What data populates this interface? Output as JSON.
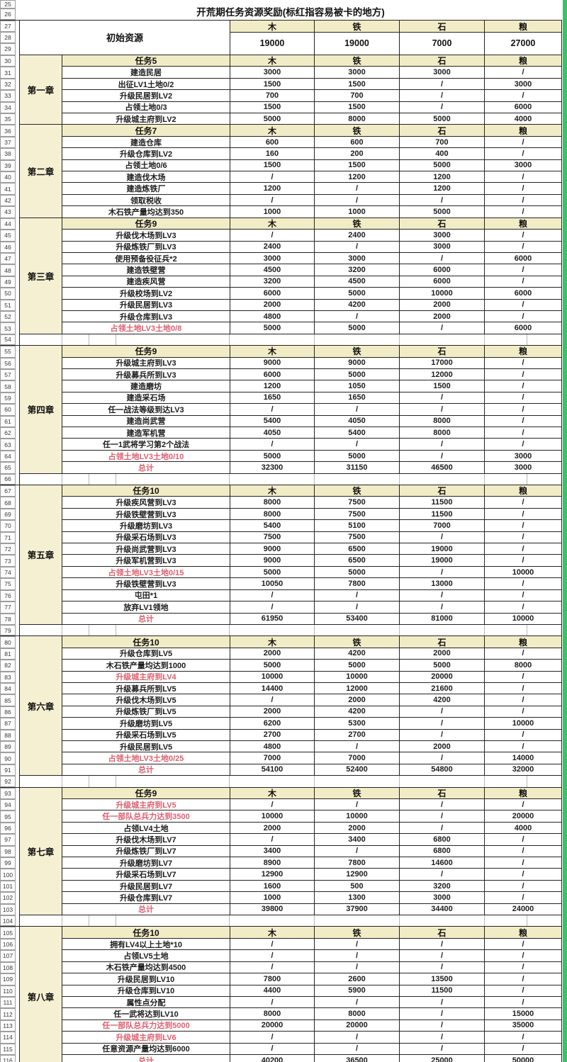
{
  "title": "开荒期任务资源奖励(标红指容易被卡的地方)",
  "columns": [
    "木",
    "铁",
    "石",
    "粮"
  ],
  "title_row_nums": [
    "25",
    "26"
  ],
  "initial_resources": {
    "label": "初始资源",
    "row_nums": [
      "27",
      "28",
      "29"
    ],
    "values": [
      "19000",
      "19000",
      "7000",
      "27000"
    ]
  },
  "colors": {
    "header_bg": "#f2ecc6",
    "chapter_bg": "#f6f0d3",
    "red_text": "#dd5f6e",
    "grid_border": "#242424",
    "green_strip": "#3ec06a"
  },
  "chapters": [
    {
      "name": "第一章",
      "task_header": "任务5",
      "header_row_num": "30",
      "spacer_row_after": null,
      "rows": [
        {
          "num": "31",
          "task": "建造民居",
          "values": [
            "3000",
            "3000",
            "3000",
            "/"
          ],
          "red": false
        },
        {
          "num": "32",
          "task": "出征LV1土地0/2",
          "values": [
            "1500",
            "1500",
            "/",
            "3000"
          ],
          "red": false
        },
        {
          "num": "33",
          "task": "升级民居到LV2",
          "values": [
            "700",
            "700",
            "/",
            "/"
          ],
          "red": false
        },
        {
          "num": "34",
          "task": "占领土地0/3",
          "values": [
            "1500",
            "1500",
            "/",
            "6000"
          ],
          "red": false
        },
        {
          "num": "35",
          "task": "升级城主府到LV2",
          "values": [
            "5000",
            "8000",
            "5000",
            "4000"
          ],
          "red": false
        }
      ]
    },
    {
      "name": "第二章",
      "task_header": "任务7",
      "header_row_num": "36",
      "spacer_row_after": null,
      "rows": [
        {
          "num": "37",
          "task": "建造仓库",
          "values": [
            "600",
            "600",
            "700",
            "/"
          ],
          "red": false
        },
        {
          "num": "38",
          "task": "升级仓库到LV2",
          "values": [
            "160",
            "200",
            "400",
            "/"
          ],
          "red": false
        },
        {
          "num": "39",
          "task": "占领土地0/6",
          "values": [
            "1500",
            "1500",
            "5000",
            "3000"
          ],
          "red": false
        },
        {
          "num": "40",
          "task": "建造伐木场",
          "values": [
            "/",
            "1200",
            "1200",
            "/"
          ],
          "red": false
        },
        {
          "num": "41",
          "task": "建造炼铁厂",
          "values": [
            "1200",
            "/",
            "1200",
            "/"
          ],
          "red": false
        },
        {
          "num": "42",
          "task": "领取税收",
          "values": [
            "/",
            "/",
            "/",
            "/"
          ],
          "red": false
        },
        {
          "num": "43",
          "task": "木石铁产量均达到350",
          "values": [
            "1000",
            "1000",
            "5000",
            "/"
          ],
          "red": false
        }
      ]
    },
    {
      "name": "第三章",
      "task_header": "任务9",
      "header_row_num": "44",
      "spacer_row_after": "54",
      "rows": [
        {
          "num": "45",
          "task": "升级伐木场到LV3",
          "values": [
            "/",
            "2400",
            "3000",
            "/"
          ],
          "red": false
        },
        {
          "num": "46",
          "task": "升级炼铁厂到LV3",
          "values": [
            "2400",
            "/",
            "3000",
            "/"
          ],
          "red": false
        },
        {
          "num": "47",
          "task": "使用预备役征兵*2",
          "values": [
            "3000",
            "3000",
            "/",
            "6000"
          ],
          "red": false
        },
        {
          "num": "48",
          "task": "建造铁壁营",
          "values": [
            "4500",
            "3200",
            "6000",
            "/"
          ],
          "red": false
        },
        {
          "num": "49",
          "task": "建造疾风营",
          "values": [
            "3200",
            "4500",
            "6000",
            "/"
          ],
          "red": false
        },
        {
          "num": "50",
          "task": "升级校场到LV2",
          "values": [
            "6000",
            "5000",
            "10000",
            "6000"
          ],
          "red": false
        },
        {
          "num": "51",
          "task": "升级民居到LV3",
          "values": [
            "2000",
            "4200",
            "2000",
            "/"
          ],
          "red": false
        },
        {
          "num": "52",
          "task": "升级仓库到LV3",
          "values": [
            "4800",
            "/",
            "2000",
            "/"
          ],
          "red": false
        },
        {
          "num": "53",
          "task": "占领土地LV3土地0/8",
          "values": [
            "5000",
            "5000",
            "/",
            "6000"
          ],
          "red": true
        }
      ]
    },
    {
      "name": "第四章",
      "task_header": "任务9",
      "header_row_num": "55",
      "spacer_row_after": "66",
      "rows": [
        {
          "num": "56",
          "task": "升级城主府到LV3",
          "values": [
            "9000",
            "9000",
            "17000",
            "/"
          ],
          "red": false
        },
        {
          "num": "57",
          "task": "升级募兵所到LV3",
          "values": [
            "6000",
            "5000",
            "12000",
            "/"
          ],
          "red": false
        },
        {
          "num": "58",
          "task": "建造磨坊",
          "values": [
            "1200",
            "1050",
            "1500",
            "/"
          ],
          "red": false
        },
        {
          "num": "59",
          "task": "建造采石场",
          "values": [
            "1650",
            "1650",
            "/",
            "/"
          ],
          "red": false
        },
        {
          "num": "60",
          "task": "任一战法等级到达LV3",
          "values": [
            "/",
            "/",
            "/",
            "/"
          ],
          "red": false
        },
        {
          "num": "61",
          "task": "建造尚武营",
          "values": [
            "5400",
            "4050",
            "8000",
            "/"
          ],
          "red": false
        },
        {
          "num": "62",
          "task": "建造军机营",
          "values": [
            "4050",
            "5400",
            "8000",
            "/"
          ],
          "red": false
        },
        {
          "num": "63",
          "task": "任一1武将学习第2个战法",
          "values": [
            "/",
            "/",
            "/",
            "/"
          ],
          "red": false
        },
        {
          "num": "64",
          "task": "占领土地LV3土地0/10",
          "values": [
            "5000",
            "5000",
            "/",
            "3000"
          ],
          "red": true
        },
        {
          "num": "65",
          "task": "总计",
          "values": [
            "32300",
            "31150",
            "46500",
            "3000"
          ],
          "red": true
        }
      ]
    },
    {
      "name": "第五章",
      "task_header": "任务10",
      "header_row_num": "67",
      "spacer_row_after": "79",
      "rows": [
        {
          "num": "68",
          "task": "升级疾风营到LV3",
          "values": [
            "8000",
            "7500",
            "11500",
            "/"
          ],
          "red": false
        },
        {
          "num": "69",
          "task": "升级铁壁营到LV3",
          "values": [
            "8000",
            "7500",
            "11500",
            "/"
          ],
          "red": false
        },
        {
          "num": "70",
          "task": "升级磨坊到LV3",
          "values": [
            "5400",
            "5100",
            "7000",
            "/"
          ],
          "red": false
        },
        {
          "num": "71",
          "task": "升级采石场到LV3",
          "values": [
            "7500",
            "7500",
            "/",
            "/"
          ],
          "red": false
        },
        {
          "num": "72",
          "task": "升级尚武营到LV3",
          "values": [
            "9000",
            "6500",
            "19000",
            "/"
          ],
          "red": false
        },
        {
          "num": "73",
          "task": "升级军机营到LV3",
          "values": [
            "9000",
            "6500",
            "19000",
            "/"
          ],
          "red": false
        },
        {
          "num": "74",
          "task": "占领土地LV3土地0/15",
          "values": [
            "5000",
            "5000",
            "/",
            "10000"
          ],
          "red": true
        },
        {
          "num": "75",
          "task": "升级铁壁营到LV3",
          "values": [
            "10050",
            "7800",
            "13000",
            "/"
          ],
          "red": false
        },
        {
          "num": "76",
          "task": "屯田*1",
          "values": [
            "/",
            "/",
            "/",
            "/"
          ],
          "red": false
        },
        {
          "num": "77",
          "task": "放弃LV1领地",
          "values": [
            "/",
            "/",
            "/",
            "/"
          ],
          "red": false
        },
        {
          "num": "78",
          "task": "总计",
          "values": [
            "61950",
            "53400",
            "81000",
            "10000"
          ],
          "red": true
        }
      ]
    },
    {
      "name": "第六章",
      "task_header": "任务10",
      "header_row_num": "80",
      "spacer_row_after": "92",
      "rows": [
        {
          "num": "81",
          "task": "升级仓库到LV5",
          "values": [
            "2000",
            "4200",
            "2000",
            "/"
          ],
          "red": false
        },
        {
          "num": "82",
          "task": "木石铁产量均达到1000",
          "values": [
            "5000",
            "5000",
            "5000",
            "8000"
          ],
          "red": false
        },
        {
          "num": "83",
          "task": "升级城主府到LV4",
          "values": [
            "10000",
            "10000",
            "20000",
            "/"
          ],
          "red": true
        },
        {
          "num": "84",
          "task": "升级募兵所到LV5",
          "values": [
            "14400",
            "12000",
            "21600",
            "/"
          ],
          "red": false
        },
        {
          "num": "85",
          "task": "升级伐木场到LV5",
          "values": [
            "/",
            "2000",
            "4200",
            "/"
          ],
          "red": false
        },
        {
          "num": "86",
          "task": "升级炼铁厂到LV5",
          "values": [
            "2000",
            "4200",
            "/",
            "/"
          ],
          "red": false
        },
        {
          "num": "87",
          "task": "升级磨坊到LV5",
          "values": [
            "6200",
            "5300",
            "/",
            "10000"
          ],
          "red": false
        },
        {
          "num": "88",
          "task": "升级采石场到LV5",
          "values": [
            "2700",
            "2700",
            "/",
            "/"
          ],
          "red": false
        },
        {
          "num": "89",
          "task": "升级民居到LV5",
          "values": [
            "4800",
            "/",
            "2000",
            "/"
          ],
          "red": false
        },
        {
          "num": "90",
          "task": "占领土地LV3土地0/25",
          "values": [
            "7000",
            "7000",
            "/",
            "14000"
          ],
          "red": true
        },
        {
          "num": "91",
          "task": "总计",
          "values": [
            "54100",
            "52400",
            "54800",
            "32000"
          ],
          "red": true
        }
      ]
    },
    {
      "name": "第七章",
      "task_header": "任务9",
      "header_row_num": "93",
      "spacer_row_after": "104",
      "rows": [
        {
          "num": "94",
          "task": "升级城主府到LV5",
          "values": [
            "/",
            "/",
            "/",
            "/"
          ],
          "red": true
        },
        {
          "num": "95",
          "task": "任一部队总兵力达到3500",
          "values": [
            "10000",
            "10000",
            "/",
            "20000"
          ],
          "red": true
        },
        {
          "num": "96",
          "task": "占领LV4土地",
          "values": [
            "2000",
            "2000",
            "/",
            "4000"
          ],
          "red": false
        },
        {
          "num": "97",
          "task": "升级伐木场到LV7",
          "values": [
            "/",
            "3400",
            "6800",
            "/"
          ],
          "red": false
        },
        {
          "num": "98",
          "task": "升级炼铁厂到LV7",
          "values": [
            "3400",
            "/",
            "6800",
            "/"
          ],
          "red": false
        },
        {
          "num": "99",
          "task": "升级磨坊到LV7",
          "values": [
            "8900",
            "7800",
            "14600",
            "/"
          ],
          "red": false
        },
        {
          "num": "100",
          "task": "升级采石场到LV7",
          "values": [
            "12900",
            "12900",
            "/",
            "/"
          ],
          "red": false
        },
        {
          "num": "101",
          "task": "升级民居到LV7",
          "values": [
            "1600",
            "500",
            "3200",
            "/"
          ],
          "red": false
        },
        {
          "num": "102",
          "task": "升级仓库到LV7",
          "values": [
            "1000",
            "1300",
            "3000",
            "/"
          ],
          "red": false
        },
        {
          "num": "103",
          "task": "总计",
          "values": [
            "39800",
            "37900",
            "34400",
            "24000"
          ],
          "red": true
        }
      ]
    },
    {
      "name": "第八章",
      "task_header": "任务10",
      "header_row_num": "105",
      "spacer_row_after": null,
      "rows": [
        {
          "num": "106",
          "task": "拥有LV4以上土地*10",
          "values": [
            "/",
            "/",
            "/",
            "/"
          ],
          "red": false
        },
        {
          "num": "107",
          "task": "占领LV5土地",
          "values": [
            "/",
            "/",
            "/",
            "/"
          ],
          "red": false
        },
        {
          "num": "108",
          "task": "木石铁产量均达到4500",
          "values": [
            "/",
            "/",
            "/",
            "/"
          ],
          "red": false
        },
        {
          "num": "109",
          "task": "升级民居到LV10",
          "values": [
            "7800",
            "2600",
            "13500",
            "/"
          ],
          "red": false
        },
        {
          "num": "110",
          "task": "升级仓库到LV10",
          "values": [
            "4400",
            "5900",
            "11500",
            "/"
          ],
          "red": false
        },
        {
          "num": "111",
          "task": "属性点分配",
          "values": [
            "/",
            "/",
            "/",
            "/"
          ],
          "red": false
        },
        {
          "num": "112",
          "task": "任一武将达到LV10",
          "values": [
            "8000",
            "8000",
            "/",
            "15000"
          ],
          "red": false
        },
        {
          "num": "113",
          "task": "任一部队总兵力达到5000",
          "values": [
            "20000",
            "20000",
            "/",
            "35000"
          ],
          "red": true
        },
        {
          "num": "114",
          "task": "升级城主府到LV6",
          "values": [
            "/",
            "/",
            "/",
            "/"
          ],
          "red": true
        },
        {
          "num": "115",
          "task": "任意资源产量均达到6000",
          "values": [
            "/",
            "/",
            "/",
            "/"
          ],
          "red": false
        },
        {
          "num": "116",
          "task": "总计",
          "values": [
            "40200",
            "36500",
            "25000",
            "50000"
          ],
          "red": true
        }
      ]
    }
  ]
}
